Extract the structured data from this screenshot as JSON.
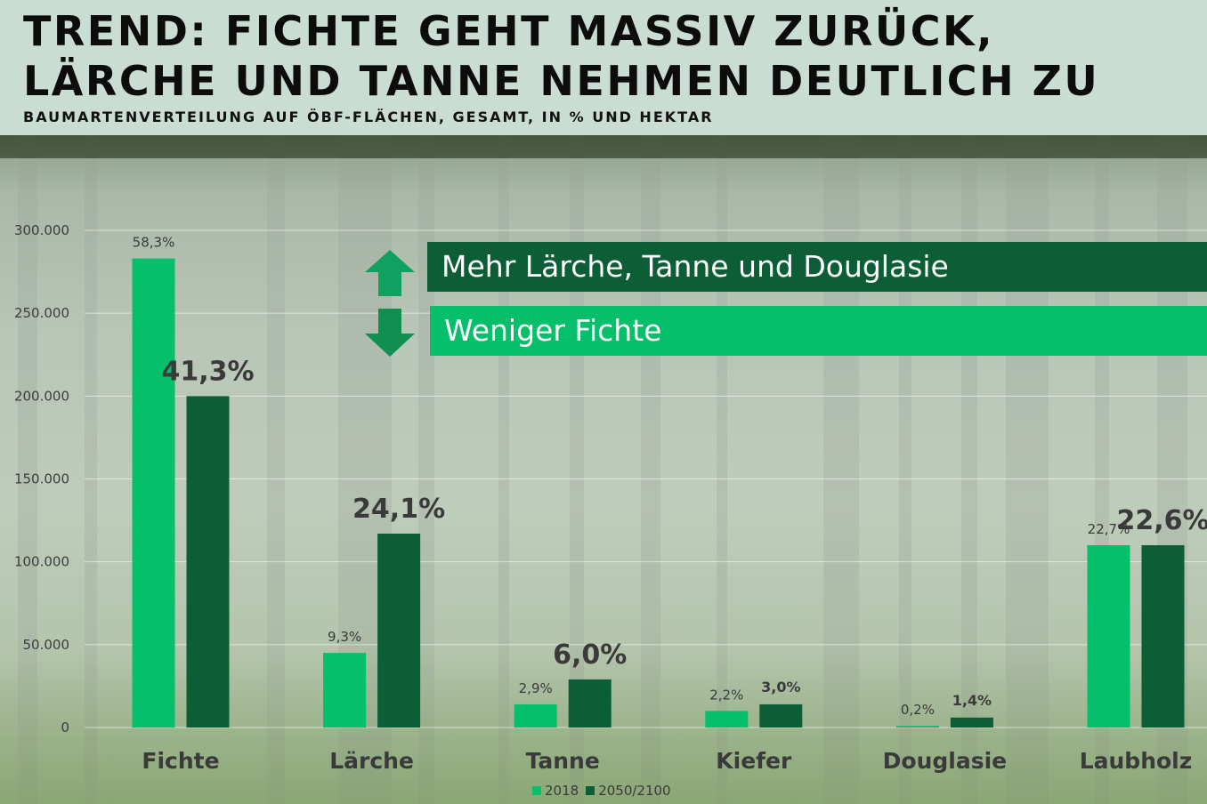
{
  "header": {
    "title_line1": "TREND: FICHTE GEHT MASSIV ZURÜCK,",
    "title_line2": "LÄRCHE UND TANNE NEHMEN DEUTLICH ZU",
    "subtitle": "BAUMARTENVERTEILUNG AUF ÖBF-FLÄCHEN, GESAMT, IN % UND HEKTAR"
  },
  "annotations": {
    "more": "Mehr Lärche, Tanne und Douglasie",
    "less": "Weniger Fichte"
  },
  "colors": {
    "series_2018": "#06bf6a",
    "series_2050": "#0b5e35",
    "up_arrow": "#10a060",
    "down_arrow": "#0f8f50"
  },
  "chart_data": {
    "type": "bar",
    "title": "TREND: FICHTE GEHT MASSIV ZURÜCK, LÄRCHE UND TANNE NEHMEN DEUTLICH ZU",
    "subtitle": "BAUMARTENVERTEILUNG AUF ÖBF-FLÄCHEN, GESAMT, IN % UND HEKTAR",
    "categories": [
      "Fichte",
      "Lärche",
      "Tanne",
      "Kiefer",
      "Douglasie",
      "Laubholz"
    ],
    "series": [
      {
        "name": "2018",
        "values": [
          283000,
          45000,
          14000,
          10000,
          1000,
          110000
        ],
        "labels": [
          "58,3%",
          "9,3%",
          "2,9%",
          "2,2%",
          "0,2%",
          "22,7%"
        ]
      },
      {
        "name": "2050/2100",
        "values": [
          200000,
          117000,
          29000,
          14000,
          6000,
          110000
        ],
        "labels": [
          "41,3%",
          "24,1%",
          "6,0%",
          "3,0%",
          "1,4%",
          "22,6%"
        ]
      }
    ],
    "yticks": [
      "0",
      "50.000",
      "100.000",
      "150.000",
      "200.000",
      "250.000",
      "300.000"
    ],
    "ytick_values": [
      0,
      50000,
      100000,
      150000,
      200000,
      250000,
      300000
    ],
    "ylim": [
      0,
      300000
    ],
    "xlabel": "",
    "ylabel": "",
    "grid": true,
    "legend_position": "bottom-center"
  }
}
